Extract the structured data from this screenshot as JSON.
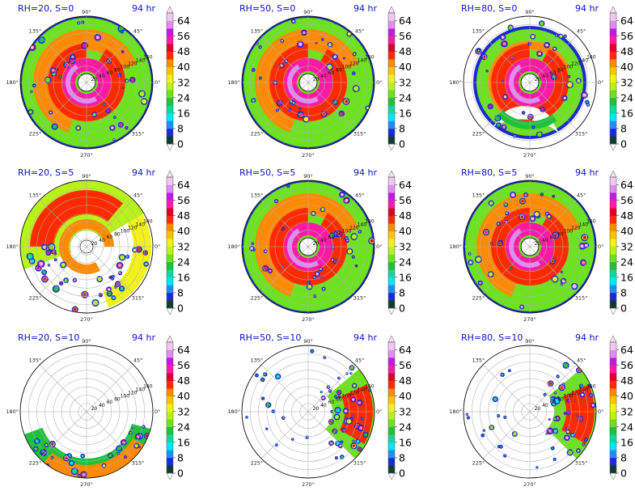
{
  "figure": {
    "colorbar": {
      "ticks": [
        "0",
        "8",
        "16",
        "24",
        "32",
        "40",
        "48",
        "56",
        "64"
      ],
      "colors": [
        "#0f3d2e",
        "#1c2bd1",
        "#1f8dff",
        "#00e7ff",
        "#13d7a0",
        "#1fc23a",
        "#6de21e",
        "#b8f21a",
        "#f2f21a",
        "#ffc400",
        "#ff8a00",
        "#ff2a00",
        "#e0002a",
        "#ff1aa6",
        "#c21ae6",
        "#e08cf2",
        "#f2c6f2"
      ]
    },
    "degree_labels": [
      "90°",
      "45°",
      "0°",
      "315°",
      "270°",
      "225°",
      "180°",
      "135°"
    ],
    "radius_labels": [
      "20",
      "40",
      "60",
      "80",
      "100",
      "120",
      "140",
      "160"
    ]
  },
  "chart_data": [
    {
      "type": "polar-contour",
      "title_left": "RH=20, S=0",
      "title_right": "94 hr",
      "rh": 20,
      "s": 0,
      "pattern": "full-spiral",
      "colorbar_range": [
        0,
        68
      ]
    },
    {
      "type": "polar-contour",
      "title_left": "RH=50, S=0",
      "title_right": "94 hr",
      "rh": 50,
      "s": 0,
      "pattern": "full-spiral",
      "colorbar_range": [
        0,
        68
      ]
    },
    {
      "type": "polar-contour",
      "title_left": "RH=80, S=0",
      "title_right": "94 hr",
      "rh": 80,
      "s": 0,
      "pattern": "compact-ring",
      "colorbar_range": [
        0,
        68
      ]
    },
    {
      "type": "polar-contour",
      "title_left": "RH=20, S=5",
      "title_right": "94 hr",
      "rh": 20,
      "s": 5,
      "pattern": "partial-north",
      "colorbar_range": [
        0,
        68
      ]
    },
    {
      "type": "polar-contour",
      "title_left": "RH=50, S=5",
      "title_right": "94 hr",
      "rh": 50,
      "s": 5,
      "pattern": "large-asymmetric",
      "colorbar_range": [
        0,
        68
      ]
    },
    {
      "type": "polar-contour",
      "title_left": "RH=80, S=5",
      "title_right": "94 hr",
      "rh": 80,
      "s": 5,
      "pattern": "large-asymmetric",
      "colorbar_range": [
        0,
        68
      ]
    },
    {
      "type": "polar-contour",
      "title_left": "RH=20, S=10",
      "title_right": "94 hr",
      "rh": 20,
      "s": 10,
      "pattern": "south-arc",
      "colorbar_range": [
        0,
        68
      ]
    },
    {
      "type": "polar-contour",
      "title_left": "RH=50, S=10",
      "title_right": "94 hr",
      "rh": 50,
      "s": 10,
      "pattern": "east-cells",
      "colorbar_range": [
        0,
        68
      ]
    },
    {
      "type": "polar-contour",
      "title_left": "RH=80, S=10",
      "title_right": "94 hr",
      "rh": 80,
      "s": 10,
      "pattern": "east-cells",
      "colorbar_range": [
        0,
        68
      ]
    }
  ]
}
